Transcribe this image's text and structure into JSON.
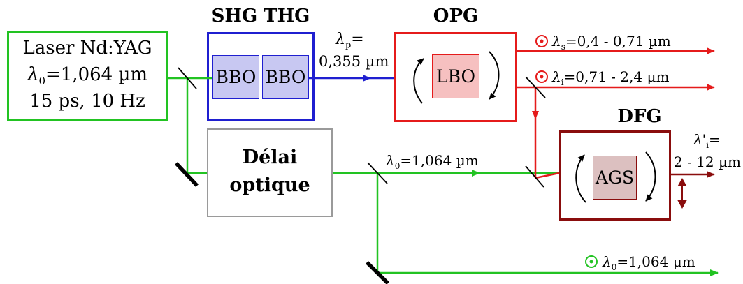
{
  "colors": {
    "green": "#22c322",
    "blue": "#1f1fd0",
    "red": "#e51b1b",
    "darkred": "#8a0d0d",
    "crystal_blue_fill": "#c8c8f2",
    "crystal_red_fill": "#f6c0c0",
    "crystal_darkred_fill": "#dcc0c0",
    "delay_border": "#9a9a9a",
    "mirror": "#000000"
  },
  "laser": {
    "line1": "Laser Nd:YAG",
    "line2_sym": "λ",
    "line2_sub": "0",
    "line2_rest": "=1,064 µm",
    "line3": "15 ps, 10 Hz"
  },
  "shg_thg": {
    "title": "SHG THG",
    "crystal1": "BBO",
    "crystal2": "BBO"
  },
  "pump": {
    "sym": "λ",
    "sub": "p",
    "eq": "=",
    "value": "0,355 µm"
  },
  "opg": {
    "title": "OPG",
    "crystal": "LBO"
  },
  "signal": {
    "sym": "λ",
    "sub": "s",
    "rest": "=0,4 - 0,71 µm"
  },
  "idler": {
    "sym": "λ",
    "sub": "i",
    "rest": "=0,71 - 2,4 µm"
  },
  "delay": {
    "line1": "Délai",
    "line2": "optique"
  },
  "fundamental_mid": {
    "sym": "λ",
    "sub": "0",
    "rest": "=1,064 µm"
  },
  "dfg": {
    "title": "DFG",
    "crystal": "AGS"
  },
  "dfg_output": {
    "sym": "λ'",
    "sub": "i",
    "eq": "=",
    "range": "2 - 12 µm"
  },
  "fundamental_out": {
    "sym": "λ",
    "sub": "0",
    "rest": "=1,064 µm"
  }
}
